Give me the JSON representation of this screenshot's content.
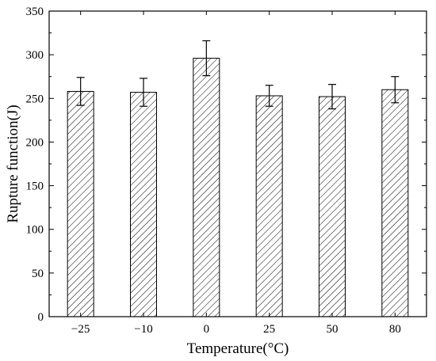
{
  "chart_data": {
    "type": "bar",
    "categories": [
      "−25",
      "−10",
      "0",
      "25",
      "50",
      "80"
    ],
    "values": [
      258,
      257,
      296,
      253,
      252,
      260
    ],
    "error_bars": [
      16,
      16,
      20,
      12,
      14,
      15
    ],
    "xlabel": "Temperature(°C)",
    "ylabel": "Rupture function(J)",
    "ylim": [
      0,
      350
    ],
    "yticks": [
      0,
      50,
      100,
      150,
      200,
      250,
      300,
      350
    ],
    "grid": false,
    "bar_fill": "hatched",
    "colors": {
      "bar_edge": "#000000",
      "hatch": "#000000",
      "background": "#ffffff"
    }
  }
}
